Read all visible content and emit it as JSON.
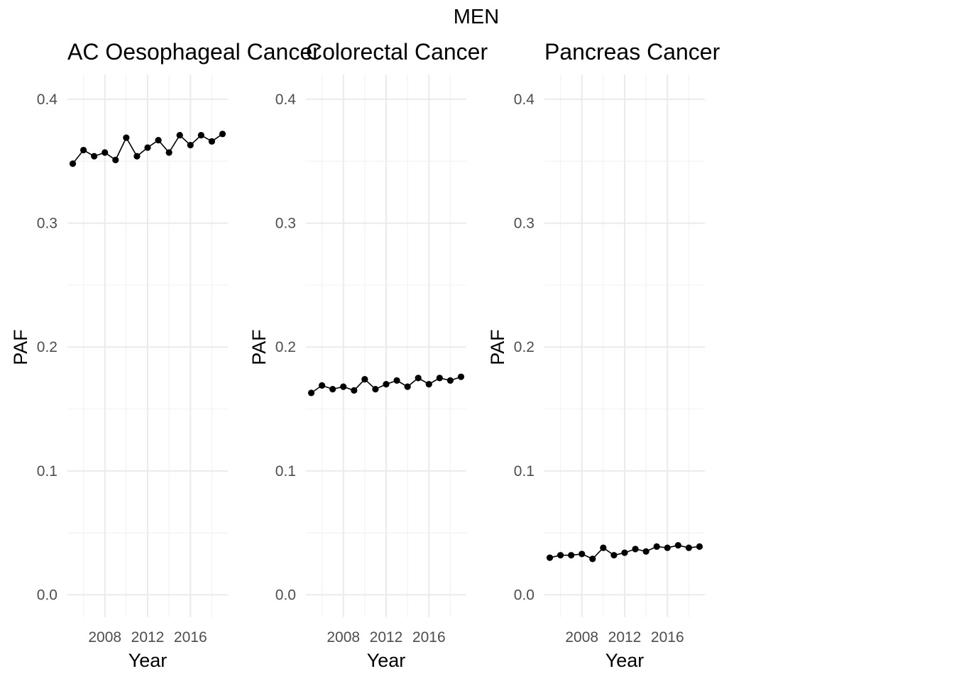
{
  "figure_title": "MEN",
  "chart_data": [
    {
      "type": "line",
      "title": "AC Oesophageal Cancer",
      "xlabel": "Year",
      "ylabel": "PAF",
      "x": [
        2005,
        2006,
        2007,
        2008,
        2009,
        2010,
        2011,
        2012,
        2013,
        2014,
        2015,
        2016,
        2017,
        2018,
        2019
      ],
      "series": [
        {
          "values": [
            0.348,
            0.359,
            0.354,
            0.357,
            0.351,
            0.369,
            0.354,
            0.361,
            0.367,
            0.357,
            0.371,
            0.363,
            0.371,
            0.366,
            0.372
          ]
        }
      ],
      "xlim": [
        2004.5,
        2019.5
      ],
      "ylim": [
        -0.018,
        0.42
      ],
      "xticks": [
        2008,
        2012,
        2016
      ],
      "yticks": [
        0.0,
        0.1,
        0.2,
        0.3,
        0.4
      ],
      "ytick_labels": [
        "0.0",
        "0.1",
        "0.2",
        "0.3",
        "0.4"
      ],
      "grid": true
    },
    {
      "type": "line",
      "title": "Colorectal Cancer",
      "xlabel": "Year",
      "ylabel": "PAF",
      "x": [
        2005,
        2006,
        2007,
        2008,
        2009,
        2010,
        2011,
        2012,
        2013,
        2014,
        2015,
        2016,
        2017,
        2018,
        2019
      ],
      "series": [
        {
          "values": [
            0.163,
            0.169,
            0.166,
            0.168,
            0.165,
            0.174,
            0.166,
            0.17,
            0.173,
            0.168,
            0.175,
            0.17,
            0.175,
            0.173,
            0.176
          ]
        }
      ],
      "xlim": [
        2004.5,
        2019.5
      ],
      "ylim": [
        -0.018,
        0.42
      ],
      "xticks": [
        2008,
        2012,
        2016
      ],
      "yticks": [
        0.0,
        0.1,
        0.2,
        0.3,
        0.4
      ],
      "ytick_labels": [
        "0.0",
        "0.1",
        "0.2",
        "0.3",
        "0.4"
      ],
      "grid": true
    },
    {
      "type": "line",
      "title": "Pancreas Cancer",
      "xlabel": "Year",
      "ylabel": "PAF",
      "x": [
        2005,
        2006,
        2007,
        2008,
        2009,
        2010,
        2011,
        2012,
        2013,
        2014,
        2015,
        2016,
        2017,
        2018,
        2019
      ],
      "series": [
        {
          "values": [
            0.03,
            0.032,
            0.032,
            0.033,
            0.029,
            0.038,
            0.032,
            0.034,
            0.037,
            0.035,
            0.039,
            0.038,
            0.04,
            0.038,
            0.039
          ]
        }
      ],
      "xlim": [
        2004.5,
        2019.5
      ],
      "ylim": [
        -0.018,
        0.42
      ],
      "xticks": [
        2008,
        2012,
        2016
      ],
      "yticks": [
        0.0,
        0.1,
        0.2,
        0.3,
        0.4
      ],
      "ytick_labels": [
        "0.0",
        "0.1",
        "0.2",
        "0.3",
        "0.4"
      ],
      "grid": true
    }
  ]
}
